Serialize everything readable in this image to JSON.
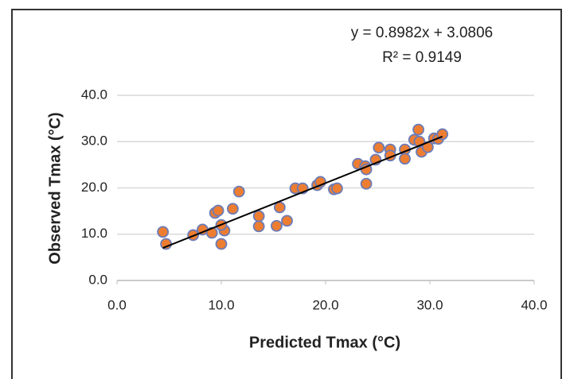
{
  "chart_data": {
    "type": "scatter",
    "xlabel": "Predicted Tmax (°C)",
    "ylabel": "Observed Tmax (°C)",
    "series": [
      {
        "name": "Tmax",
        "color": "#ed7d31",
        "x": [
          4.4,
          4.7,
          7.3,
          8.2,
          9.1,
          9.4,
          9.7,
          10.0,
          10.3,
          10.0,
          11.1,
          11.7,
          13.6,
          13.6,
          15.3,
          15.6,
          16.3,
          17.1,
          17.8,
          19.2,
          19.5,
          20.8,
          21.1,
          23.1,
          23.8,
          23.9,
          23.9,
          24.8,
          25.1,
          26.2,
          26.2,
          27.6,
          27.6,
          28.5,
          28.9,
          29.0,
          29.2,
          29.8,
          30.4,
          30.8,
          31.2
        ],
        "values": [
          10.5,
          7.9,
          9.8,
          11.0,
          10.3,
          14.6,
          15.1,
          7.9,
          10.8,
          12.0,
          15.5,
          19.2,
          13.9,
          11.7,
          11.8,
          15.8,
          12.9,
          19.9,
          19.9,
          20.6,
          21.3,
          19.7,
          19.9,
          25.2,
          24.7,
          20.9,
          24.0,
          26.1,
          28.7,
          28.3,
          27.0,
          28.3,
          26.3,
          30.4,
          32.6,
          30.0,
          27.8,
          28.8,
          30.7,
          30.6,
          31.6
        ]
      }
    ],
    "trendline": {
      "slope": 0.8982,
      "intercept": 3.0806,
      "equation": "y = 0.8982x + 3.0806",
      "r_squared": "R² = 0.9149",
      "color": "#000000"
    },
    "xlim": [
      0,
      40
    ],
    "ylim": [
      0,
      40
    ],
    "xticks": [
      {
        "value": 0,
        "label": "0.0"
      },
      {
        "value": 10,
        "label": "10.0"
      },
      {
        "value": 20,
        "label": "20.0"
      },
      {
        "value": 30,
        "label": "30.0"
      },
      {
        "value": 40,
        "label": "40.0"
      }
    ],
    "yticks": [
      {
        "value": 0,
        "label": "0.0"
      },
      {
        "value": 10,
        "label": "10.0"
      },
      {
        "value": 20,
        "label": "20.0"
      },
      {
        "value": 30,
        "label": "30.0"
      },
      {
        "value": 40,
        "label": "40.0"
      }
    ],
    "grid": true
  }
}
